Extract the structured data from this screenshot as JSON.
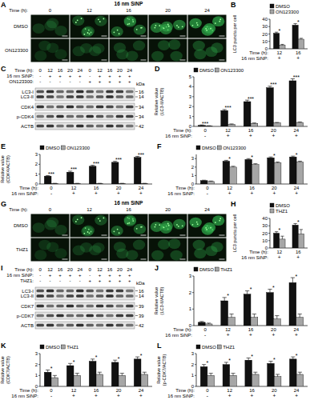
{
  "chart_data": [
    {
      "panel_label": "B",
      "type": "bar",
      "y_label": "LC3 puncta per cell",
      "x_label": "Time (h):",
      "categories": [
        "12",
        "16"
      ],
      "x_rows": [
        {
          "label": "16 nm SiNP:",
          "values": [
            "+",
            "+"
          ]
        }
      ],
      "series": [
        {
          "name": "DMSO",
          "color": "#111111",
          "values": [
            21,
            32
          ],
          "errors": [
            1.5,
            2
          ]
        },
        {
          "name": "ON123300",
          "color": "#a6a6a6",
          "values": [
            5,
            13
          ],
          "errors": [
            1,
            1.2
          ]
        }
      ],
      "ylim": [
        0,
        40
      ],
      "yticks": [
        0,
        10,
        20,
        30,
        40
      ],
      "legend": "upper left",
      "significance": [
        "*",
        "*"
      ]
    },
    {
      "panel_label": "D",
      "type": "bar",
      "y_label": "Relative value (LC3-II/ACTB)",
      "x_label": "Time (h):",
      "categories": [
        "0",
        "12",
        "16",
        "20",
        "24"
      ],
      "x_rows": [
        {
          "label": "16 nm SiNP:",
          "values": [
            "-",
            "+",
            "+",
            "+",
            "+"
          ]
        }
      ],
      "series": [
        {
          "name": "DMSO",
          "color": "#111111",
          "values": [
            0.1,
            1.6,
            2.5,
            3.9,
            4.6
          ],
          "errors": [
            0.05,
            0.1,
            0.15,
            0.15,
            0.2
          ]
        },
        {
          "name": "ON123300",
          "color": "#a6a6a6",
          "values": [
            0.05,
            0.2,
            0.3,
            0.35,
            0.4
          ],
          "errors": [
            0.02,
            0.05,
            0.05,
            0.05,
            0.05
          ]
        }
      ],
      "ylim": [
        0,
        5
      ],
      "yticks": [
        0,
        1,
        2,
        3,
        4,
        5
      ],
      "legend": "upper left",
      "significance": [
        "***",
        "***",
        "***",
        "***",
        "***"
      ]
    },
    {
      "panel_label": "E",
      "type": "bar",
      "y_label": "Relative value (CDK4/ACTB)",
      "x_label": "Time (h):",
      "categories": [
        "0",
        "12",
        "16",
        "20",
        "24"
      ],
      "x_rows": [
        {
          "label": "16 nm SiNP:",
          "values": [
            "-",
            "+",
            "+",
            "+",
            "+"
          ]
        }
      ],
      "series": [
        {
          "name": "DMSO",
          "color": "#111111",
          "values": [
            0.8,
            1.2,
            1.8,
            2.2,
            2.7
          ],
          "errors": [
            0.05,
            0.1,
            0.1,
            0.1,
            0.1
          ]
        },
        {
          "name": "ON123300",
          "color": "#a6a6a6",
          "values": [
            0.05,
            0.05,
            0.05,
            0.05,
            0.05
          ],
          "errors": [
            0.02,
            0.02,
            0.02,
            0.02,
            0.02
          ]
        }
      ],
      "ylim": [
        0,
        3
      ],
      "yticks": [
        0,
        1,
        2,
        3
      ],
      "legend": "upper left",
      "significance": [
        "***",
        "***",
        "***",
        "***",
        "***"
      ]
    },
    {
      "panel_label": "F",
      "type": "bar",
      "x_label": "Time (h):",
      "categories": [
        "0",
        "12",
        "16",
        "20",
        "24"
      ],
      "x_rows": [
        {
          "label": "16 nm SiNP:",
          "values": [
            "-",
            "+",
            "+",
            "+",
            "+"
          ]
        }
      ],
      "series": [
        {
          "name": "DMSO",
          "color": "#111111",
          "values": [
            0.4,
            2.7,
            2.9,
            3.1,
            3.2
          ],
          "errors": [
            0.05,
            0.1,
            0.1,
            0.1,
            0.1
          ]
        },
        {
          "name": "ON123300",
          "color": "#a6a6a6",
          "values": [
            0.3,
            2.0,
            2.3,
            2.5,
            2.6
          ],
          "errors": [
            0.05,
            0.1,
            0.1,
            0.1,
            0.1
          ]
        }
      ],
      "ylim": [
        0,
        3.5
      ],
      "yticks": [
        0,
        1,
        2,
        3
      ],
      "legend": "upper left",
      "significance": [
        null,
        "*",
        "*",
        "*",
        "*"
      ]
    },
    {
      "panel_label": "H",
      "type": "bar",
      "y_label": "LC3 puncta per cell",
      "x_label": "Time (h):",
      "categories": [
        "12",
        "16"
      ],
      "x_rows": [
        {
          "label": "16 nm SiNP:",
          "values": [
            "+",
            "+"
          ]
        }
      ],
      "series": [
        {
          "name": "DMSO",
          "color": "#111111",
          "values": [
            20,
            31
          ],
          "errors": [
            2,
            2
          ]
        },
        {
          "name": "THZ1",
          "color": "#a6a6a6",
          "values": [
            12,
            19
          ],
          "errors": [
            4,
            6
          ]
        }
      ],
      "ylim": [
        0,
        40
      ],
      "yticks": [
        0,
        10,
        20,
        30,
        40
      ],
      "legend": "upper left",
      "significance": [
        "*",
        "*"
      ]
    },
    {
      "panel_label": "J",
      "type": "bar",
      "y_label": "Relative value (LC3-II/ACTB)",
      "x_label": "Time (h):",
      "categories": [
        "0",
        "12",
        "16",
        "20",
        "24"
      ],
      "x_rows": [
        {
          "label": "16 nm SiNP:",
          "values": [
            "-",
            "+",
            "+",
            "+",
            "+"
          ]
        }
      ],
      "series": [
        {
          "name": "DMSO",
          "color": "#111111",
          "values": [
            0.2,
            1.5,
            1.9,
            2.0,
            2.6
          ],
          "errors": [
            0.05,
            0.2,
            0.2,
            0.2,
            0.3
          ]
        },
        {
          "name": "THZ1",
          "color": "#a6a6a6",
          "values": [
            0.1,
            0.5,
            0.5,
            0.4,
            0.5
          ],
          "errors": [
            0.05,
            0.2,
            0.2,
            0.2,
            0.2
          ]
        }
      ],
      "ylim": [
        0,
        3
      ],
      "yticks": [
        0,
        1,
        2,
        3
      ],
      "legend": "upper left",
      "significance": [
        null,
        "*",
        "*",
        "*",
        "*"
      ]
    },
    {
      "panel_label": "K",
      "type": "bar",
      "y_label": "Relative value (CDK7/ACTB)",
      "x_label": "Time (h):",
      "categories": [
        "0",
        "12",
        "16",
        "20",
        "24"
      ],
      "x_rows": [
        {
          "label": "16 nm SiNP:",
          "values": [
            "-",
            "+",
            "+",
            "+",
            "+"
          ]
        }
      ],
      "series": [
        {
          "name": "DMSO",
          "color": "#111111",
          "values": [
            1.3,
            1.9,
            2.3,
            2.2,
            2.5
          ],
          "errors": [
            0.2,
            0.2,
            0.2,
            0.2,
            0.2
          ]
        },
        {
          "name": "THZ1",
          "color": "#a6a6a6",
          "values": [
            0.8,
            1.0,
            1.1,
            1.0,
            1.1
          ],
          "errors": [
            0.2,
            0.2,
            0.2,
            0.2,
            0.2
          ]
        }
      ],
      "ylim": [
        0,
        3
      ],
      "yticks": [
        0,
        1,
        2,
        3
      ],
      "legend": "upper left",
      "significance": [
        "*",
        "*",
        "*",
        "*",
        "*"
      ]
    },
    {
      "panel_label": "L",
      "type": "bar",
      "y_label": "Relative value (p-CDK7/ACTB)",
      "x_label": "Time (h):",
      "categories": [
        "0",
        "12",
        "16",
        "20",
        "24"
      ],
      "x_rows": [
        {
          "label": "16 nm SiNP:",
          "values": [
            "-",
            "+",
            "+",
            "+",
            "+"
          ]
        }
      ],
      "series": [
        {
          "name": "DMSO",
          "color": "#111111",
          "values": [
            1.8,
            2.0,
            2.4,
            2.1,
            2.5
          ],
          "errors": [
            0.2,
            0.2,
            0.2,
            0.2,
            0.2
          ]
        },
        {
          "name": "THZ1",
          "color": "#a6a6a6",
          "values": [
            1.0,
            1.0,
            1.1,
            0.9,
            1.1
          ],
          "errors": [
            0.2,
            0.2,
            0.2,
            0.2,
            0.2
          ]
        }
      ],
      "ylim": [
        0,
        3
      ],
      "yticks": [
        0,
        1,
        2,
        3
      ],
      "legend": "upper left",
      "significance": [
        "*",
        "*",
        "*",
        "*",
        "*"
      ]
    }
  ],
  "image_panels": [
    {
      "panel_label": "A",
      "header": "16 nm SiNP",
      "x_label": "Time (h):",
      "columns": [
        "0",
        "12",
        "16",
        "20",
        "24"
      ],
      "rows": [
        "DMSO",
        "ON123300"
      ]
    },
    {
      "panel_label": "G",
      "header": "16 nm SiNP",
      "x_label": "Time (h):",
      "columns": [
        "0",
        "12",
        "16",
        "20",
        "24"
      ],
      "rows": [
        "DMSO",
        "THZ1"
      ]
    }
  ],
  "blot_panels": [
    {
      "panel_label": "C",
      "unit": "kDa",
      "lane_rows": [
        {
          "label": "Time (h):",
          "values": [
            "0",
            "12",
            "16",
            "20",
            "24",
            "0",
            "12",
            "16",
            "20",
            "24"
          ]
        },
        {
          "label": "16 nm SiNP:",
          "values": [
            "-",
            "+",
            "+",
            "+",
            "+",
            "-",
            "+",
            "+",
            "+",
            "+"
          ]
        },
        {
          "label": "ON123300:",
          "values": [
            "-",
            "-",
            "-",
            "-",
            "-",
            "+",
            "+",
            "+",
            "+",
            "+"
          ]
        }
      ],
      "strips": [
        {
          "bands": [
            "LC3-I",
            "LC3-II"
          ],
          "kda": [
            16,
            14
          ]
        },
        {
          "bands": [
            "CDK4"
          ],
          "kda": [
            34
          ]
        },
        {
          "bands": [
            "p-CDK4"
          ],
          "kda": [
            34
          ]
        },
        {
          "bands": [
            "ACTB"
          ],
          "kda": [
            42
          ]
        }
      ]
    },
    {
      "panel_label": "I",
      "unit": "kDa",
      "lane_rows": [
        {
          "label": "Time (h):",
          "values": [
            "0",
            "12",
            "16",
            "20",
            "24",
            "0",
            "12",
            "16",
            "20",
            "24"
          ]
        },
        {
          "label": "16 nm SiNP:",
          "values": [
            "-",
            "+",
            "+",
            "+",
            "+",
            "-",
            "+",
            "+",
            "+",
            "+"
          ]
        },
        {
          "label": "THZ1:",
          "values": [
            "-",
            "-",
            "-",
            "-",
            "-",
            "+",
            "+",
            "+",
            "+",
            "+"
          ]
        }
      ],
      "strips": [
        {
          "bands": [
            "LC3-I",
            "LC3-II"
          ],
          "kda": [
            16,
            14
          ]
        },
        {
          "bands": [
            "CDK7"
          ],
          "kda": [
            39
          ]
        },
        {
          "bands": [
            "p-CDK7"
          ],
          "kda": [
            39
          ]
        },
        {
          "bands": [
            "ACTB"
          ],
          "kda": [
            42
          ]
        }
      ]
    }
  ]
}
